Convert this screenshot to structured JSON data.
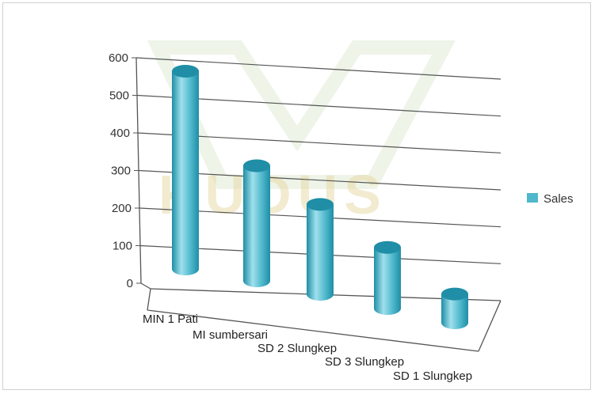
{
  "chart_data": {
    "type": "bar",
    "style": "3d-cylinder",
    "categories": [
      "MIN 1 Pati",
      "MI sumbersari",
      "SD 2 Slungkep",
      "SD 3 Slungkep",
      "SD 1 Slungkep"
    ],
    "series": [
      {
        "name": "Sales",
        "values": [
          550,
          320,
          250,
          170,
          80
        ]
      }
    ],
    "y_ticks": [
      "0",
      "100",
      "200",
      "300",
      "400",
      "500",
      "600"
    ],
    "ylim": [
      0,
      600
    ],
    "grid": true,
    "legend_position": "right",
    "colors": {
      "bar": "#4fb8cc",
      "bar_dark": "#1f8ea6",
      "bar_light": "#9fe0ec",
      "grid": "#555555"
    }
  },
  "watermark": {
    "text": "KUDUS"
  }
}
